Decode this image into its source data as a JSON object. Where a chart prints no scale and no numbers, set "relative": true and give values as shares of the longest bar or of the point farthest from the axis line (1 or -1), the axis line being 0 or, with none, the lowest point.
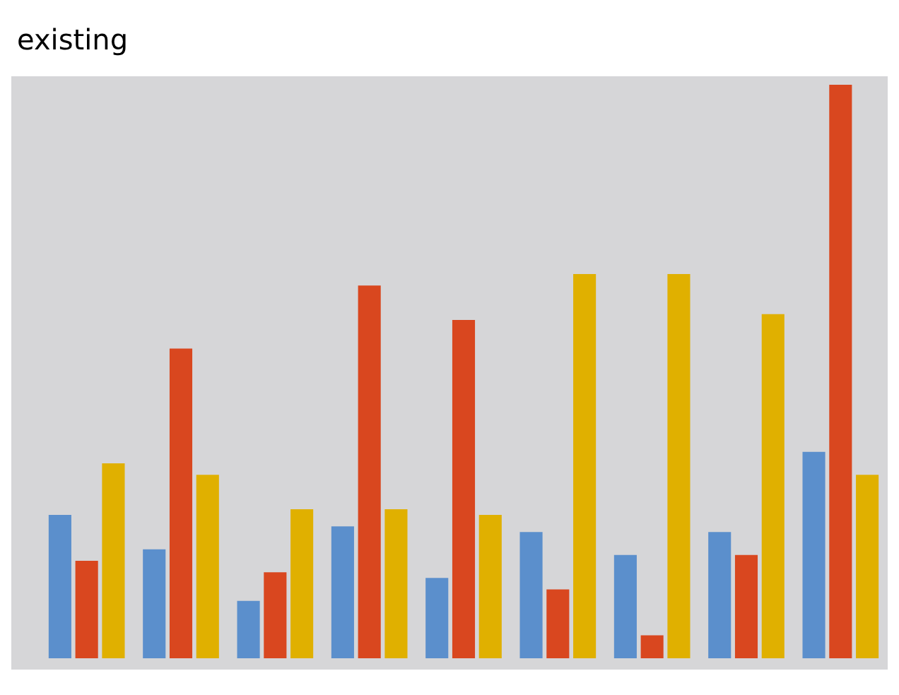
{
  "chart_data": {
    "type": "bar",
    "relative": true,
    "annotations": [
      "existing"
    ],
    "categories": [
      null,
      null,
      null,
      null,
      null,
      null,
      null,
      null,
      null
    ],
    "series": [
      {
        "color": "#5b8fcc",
        "values": [
          0.25,
          0.19,
          0.1,
          0.23,
          0.14,
          0.22,
          0.18,
          0.22,
          0.36
        ]
      },
      {
        "color": "#d9471f",
        "values": [
          0.17,
          0.54,
          0.15,
          0.65,
          0.59,
          0.12,
          0.04,
          0.18,
          1.0
        ]
      },
      {
        "color": "#e0b000",
        "values": [
          0.34,
          0.32,
          0.26,
          0.26,
          0.25,
          0.67,
          0.67,
          0.6,
          0.32
        ]
      }
    ],
    "grid": false,
    "legend": false
  }
}
